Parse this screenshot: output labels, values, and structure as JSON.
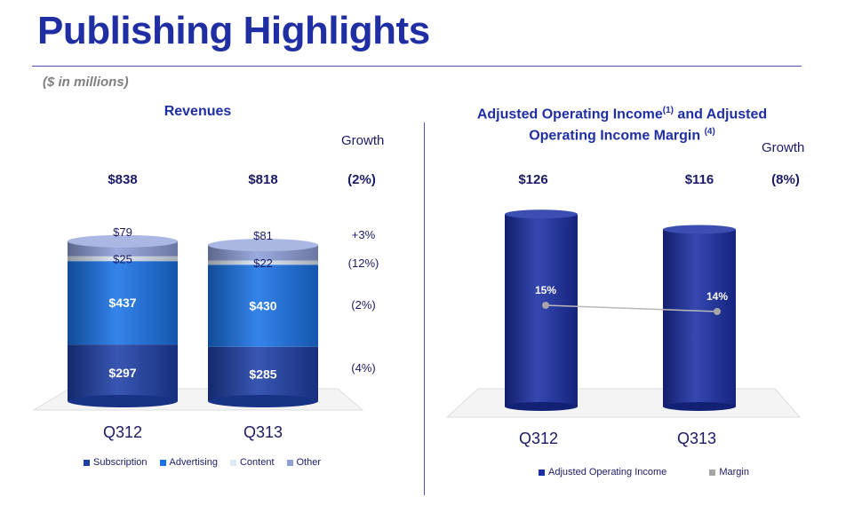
{
  "page": {
    "title": "Publishing Highlights",
    "subtitle": "($ in millions)"
  },
  "colors": {
    "title": "#1f2fa3",
    "subscription": "#1e3fa8",
    "advertising": "#1a73e8",
    "content": "#dde8f5",
    "other": "#8f9fd9",
    "adjusted_operating_income": "#1b2fa6",
    "margin": "#a6a6a6"
  },
  "chart_data": [
    {
      "type": "bar",
      "stacked": true,
      "title": "Revenues",
      "growth_header": "Growth",
      "categories": [
        "Q312",
        "Q313"
      ],
      "totals": [
        "$838",
        "$818"
      ],
      "total_growth": "(2%)",
      "series": [
        {
          "name": "Subscription",
          "values": [
            297,
            285
          ],
          "labels": [
            "$297",
            "$285"
          ],
          "growth": "(4%)"
        },
        {
          "name": "Advertising",
          "values": [
            437,
            430
          ],
          "labels": [
            "$437",
            "$430"
          ],
          "growth": "(2%)"
        },
        {
          "name": "Content",
          "values": [
            25,
            22
          ],
          "labels": [
            "$25",
            "$22"
          ],
          "growth": "(12%)"
        },
        {
          "name": "Other",
          "values": [
            79,
            81
          ],
          "labels": [
            "$79",
            "$81"
          ],
          "growth": "+3%"
        }
      ],
      "legend": [
        "Subscription",
        "Advertising",
        "Content",
        "Other"
      ],
      "legend_position": "bottom"
    },
    {
      "type": "bar",
      "title": "Adjusted Operating Income",
      "title_sup": "(1)",
      "title_rest": " and Adjusted",
      "title_line2": "Operating Income Margin",
      "title_line2_sup": "(4)",
      "growth_header": "Growth",
      "categories": [
        "Q312",
        "Q313"
      ],
      "series": [
        {
          "name": "Adjusted Operating Income",
          "values": [
            126,
            116
          ],
          "labels": [
            "$126",
            "$116"
          ]
        },
        {
          "name": "Margin",
          "type": "line",
          "values": [
            15,
            14
          ],
          "labels": [
            "15%",
            "14%"
          ]
        }
      ],
      "total_growth": "(8%)",
      "legend": [
        "Adjusted Operating Income",
        "Margin"
      ],
      "legend_position": "bottom"
    }
  ]
}
